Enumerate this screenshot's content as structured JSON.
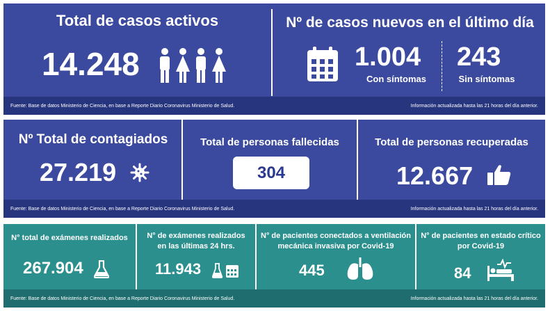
{
  "section1": {
    "active_title": "Total de casos activos",
    "active_value": "14.248",
    "new_title": "Nº de casos nuevos en el último día",
    "new_sym_value": "1.004",
    "new_sym_label": "Con síntomas",
    "new_asym_value": "243",
    "new_asym_label": "Sin síntomas",
    "source": "Fuente: Base de datos Ministerio de Ciencia, en base a Reporte Diario Coronavirus Ministerio de Salud.",
    "updated": "Información actualizada hasta las 21 horas  del día anterior."
  },
  "section2": {
    "total_title": "Nº Total de contagiados",
    "total_value": "27.219",
    "deaths_title": "Total de personas fallecidas",
    "deaths_value": "304",
    "recovered_title": "Total de personas recuperadas",
    "recovered_value": "12.667",
    "source": "Fuente: Base de datos Ministerio de Ciencia, en base a Reporte Diario Coronavirus Ministerio de Salud.",
    "updated": "Información actualizada hasta las 21 horas  del día anterior."
  },
  "section3": {
    "exams_title": "N° total de exámenes realizados",
    "exams_value": "267.904",
    "exams24_title_line1": "N° de exámenes realizados",
    "exams24_title_line2": "en las últimas 24 hrs.",
    "exams24_value": "11.943",
    "vent_title_line1": "N° de pacientes conectados a ventilación",
    "vent_title_line2": "mecánica invasiva por Covid-19",
    "vent_value": "445",
    "critical_title_line1": "N° de pacientes en estado crítico",
    "critical_title_line2": "por Covid-19",
    "critical_value": "84",
    "source": "Fuente: Base de datos Ministerio de Ciencia, en base a Reporte Diario Coronavirus Ministerio de Salud.",
    "updated": "Información actualizada hasta las 21 horas  del día anterior."
  },
  "colors": {
    "blue_panel": "#3b4a9e",
    "blue_footer": "#27347e",
    "teal_panel": "#2a8f8d",
    "teal_footer": "#1f6d6e"
  },
  "icons": [
    "people-icon",
    "calendar-icon",
    "virus-icon",
    "thumbs-up-icon",
    "flask-icon",
    "flask-calendar-icon",
    "lungs-icon",
    "hospital-bed-icon"
  ]
}
